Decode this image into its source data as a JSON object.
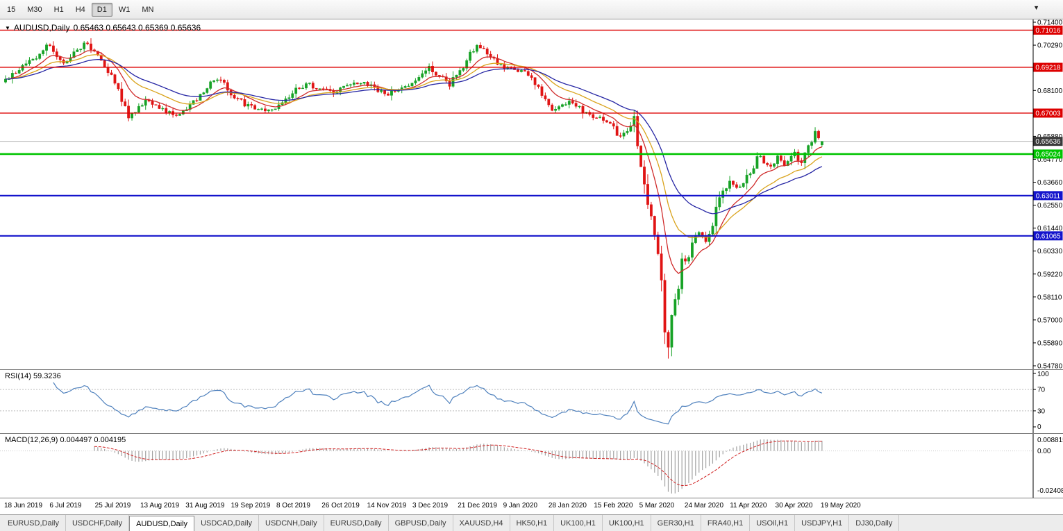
{
  "toolbar": {
    "timeframes": [
      "15",
      "M30",
      "H1",
      "H4",
      "D1",
      "W1",
      "MN"
    ],
    "active": "D1",
    "overflow_icon": "▼"
  },
  "chart_header": {
    "dropdown_icon": "▼",
    "symbol_period": "AUDUSD,Daily",
    "ohlc_text": "0.65463 0.65643 0.65369 0.65636"
  },
  "indicators": {
    "rsi_label": "RSI(14) 59.3236",
    "macd_label": "MACD(12,26,9) 0.004497 0.004195"
  },
  "tabs": {
    "items": [
      "EURUSD,Daily",
      "USDCHF,Daily",
      "AUDUSD,Daily",
      "USDCAD,Daily",
      "USDCNH,Daily",
      "EURUSD,Daily",
      "GBPUSD,Daily",
      "XAUUSD,H4",
      "HK50,H1",
      "UK100,H1",
      "UK100,H1",
      "GER30,H1",
      "FRA40,H1",
      "USOil,H1",
      "USDJPY,H1",
      "DJ30,Daily"
    ],
    "active_index": 2
  },
  "chart_data": {
    "type": "candlestick",
    "symbol": "AUDUSD",
    "timeframe": "Daily",
    "ohlc": {
      "open": 0.65463,
      "high": 0.65643,
      "low": 0.65369,
      "close": 0.65636
    },
    "price_axis": {
      "min": 0.5478,
      "max": 0.714,
      "ticks": [
        "0.71400",
        "0.70290",
        "0.69180",
        "0.68100",
        "0.66990",
        "0.65880",
        "0.64770",
        "0.63660",
        "0.62550",
        "0.61440",
        "0.60330",
        "0.59220",
        "0.58110",
        "0.57000",
        "0.55890",
        "0.54780"
      ]
    },
    "current_price": {
      "value": 0.65636,
      "label": "0.65636"
    },
    "hlines": [
      {
        "price": 0.71016,
        "label": "0.71016",
        "color": "#dd0000",
        "width": 1.4
      },
      {
        "price": 0.69218,
        "label": "0.69218",
        "color": "#dd0000",
        "width": 1.4
      },
      {
        "price": 0.67003,
        "label": "0.67003",
        "color": "#dd0000",
        "width": 1.4
      },
      {
        "price": 0.65024,
        "label": "0.65024",
        "color": "#00c400",
        "width": 2.6
      },
      {
        "price": 0.63011,
        "label": "0.63011",
        "color": "#1414cc",
        "width": 2.2
      },
      {
        "price": 0.61065,
        "label": "0.61065",
        "color": "#1414cc",
        "width": 2.2
      }
    ],
    "bars": 240,
    "seed": 20200526,
    "wiggle": 0.0016,
    "spike_low": {
      "bar": 194,
      "low": 0.5513
    },
    "close_anchors": [
      [
        0,
        0.6865
      ],
      [
        3,
        0.69
      ],
      [
        6,
        0.6935
      ],
      [
        9,
        0.6975
      ],
      [
        12,
        0.7025
      ],
      [
        15,
        0.6985
      ],
      [
        17,
        0.693
      ],
      [
        20,
        0.6985
      ],
      [
        23,
        0.704
      ],
      [
        26,
        0.7
      ],
      [
        28,
        0.695
      ],
      [
        31,
        0.687
      ],
      [
        33,
        0.682
      ],
      [
        36,
        0.669
      ],
      [
        39,
        0.6732
      ],
      [
        42,
        0.676
      ],
      [
        45,
        0.6722
      ],
      [
        48,
        0.67
      ],
      [
        50,
        0.6688
      ],
      [
        53,
        0.672
      ],
      [
        56,
        0.677
      ],
      [
        59,
        0.6822
      ],
      [
        62,
        0.687
      ],
      [
        65,
        0.6812
      ],
      [
        68,
        0.676
      ],
      [
        71,
        0.674
      ],
      [
        74,
        0.6722
      ],
      [
        78,
        0.6712
      ],
      [
        81,
        0.6758
      ],
      [
        84,
        0.68
      ],
      [
        88,
        0.6845
      ],
      [
        92,
        0.682
      ],
      [
        96,
        0.6806
      ],
      [
        100,
        0.683
      ],
      [
        104,
        0.6856
      ],
      [
        108,
        0.682
      ],
      [
        112,
        0.679
      ],
      [
        116,
        0.682
      ],
      [
        120,
        0.6868
      ],
      [
        124,
        0.692
      ],
      [
        127,
        0.688
      ],
      [
        130,
        0.6842
      ],
      [
        133,
        0.69
      ],
      [
        136,
        0.698
      ],
      [
        138,
        0.7035
      ],
      [
        140,
        0.7012
      ],
      [
        143,
        0.6962
      ],
      [
        146,
        0.6922
      ],
      [
        149,
        0.6912
      ],
      [
        152,
        0.69
      ],
      [
        155,
        0.6842
      ],
      [
        158,
        0.6772
      ],
      [
        160,
        0.6722
      ],
      [
        163,
        0.674
      ],
      [
        165,
        0.6762
      ],
      [
        168,
        0.6726
      ],
      [
        170,
        0.67
      ],
      [
        173,
        0.668
      ],
      [
        176,
        0.6656
      ],
      [
        178,
        0.6622
      ],
      [
        180,
        0.659
      ],
      [
        182,
        0.6612
      ],
      [
        184,
        0.6668
      ],
      [
        185,
        0.654
      ],
      [
        186,
        0.646
      ],
      [
        187,
        0.6372
      ],
      [
        188,
        0.6282
      ],
      [
        189,
        0.6192
      ],
      [
        190,
        0.61
      ],
      [
        191,
        0.5982
      ],
      [
        192,
        0.5852
      ],
      [
        193,
        0.57
      ],
      [
        194,
        0.5565
      ],
      [
        195,
        0.5682
      ],
      [
        196,
        0.5782
      ],
      [
        197,
        0.5872
      ],
      [
        198,
        0.596
      ],
      [
        199,
        0.5992
      ],
      [
        200,
        0.6012
      ],
      [
        201,
        0.6072
      ],
      [
        203,
        0.614
      ],
      [
        205,
        0.6082
      ],
      [
        207,
        0.6182
      ],
      [
        209,
        0.63
      ],
      [
        211,
        0.6352
      ],
      [
        212,
        0.6372
      ],
      [
        214,
        0.6332
      ],
      [
        215,
        0.6352
      ],
      [
        217,
        0.6392
      ],
      [
        218,
        0.6422
      ],
      [
        220,
        0.6472
      ],
      [
        221,
        0.6502
      ],
      [
        223,
        0.6436
      ],
      [
        225,
        0.6462
      ],
      [
        226,
        0.6482
      ],
      [
        228,
        0.6452
      ],
      [
        230,
        0.6482
      ],
      [
        231,
        0.6502
      ],
      [
        233,
        0.6466
      ],
      [
        235,
        0.6536
      ],
      [
        237,
        0.6602
      ],
      [
        238,
        0.6576
      ],
      [
        239,
        0.65636
      ]
    ],
    "moving_averages": [
      {
        "period": 10,
        "color": "#cf2a2a"
      },
      {
        "period": 20,
        "color": "#d9a31c"
      },
      {
        "period": 34,
        "color": "#2626a4"
      }
    ],
    "date_labels": [
      "18 Jun 2019",
      "6 Jul 2019",
      "25 Jul 2019",
      "13 Aug 2019",
      "31 Aug 2019",
      "19 Sep 2019",
      "8 Oct 2019",
      "26 Oct 2019",
      "14 Nov 2019",
      "3 Dec 2019",
      "21 Dec 2019",
      "9 Jan 2020",
      "28 Jan 2020",
      "15 Feb 2020",
      "5 Mar 2020",
      "24 Mar 2020",
      "11 Apr 2020",
      "30 Apr 2020",
      "19 May 2020"
    ],
    "colors": {
      "up": "#17a226",
      "down": "#e01414",
      "bid_line": "#b6b6b6",
      "current_badge": "#3a3a3a",
      "axis_text": "#000000"
    },
    "rsi": {
      "period": 14,
      "levels": [
        70,
        30
      ],
      "ticks": [
        "100",
        "70",
        "30",
        "0"
      ],
      "color": "#4f81bd"
    },
    "macd": {
      "fast": 12,
      "slow": 26,
      "signal": 9,
      "ticks": {
        "max": "0.008815",
        "zero": "0.00",
        "min": "-0.02408"
      },
      "hist_color": "#a2a2a2",
      "signal_color": "#d02020"
    }
  }
}
